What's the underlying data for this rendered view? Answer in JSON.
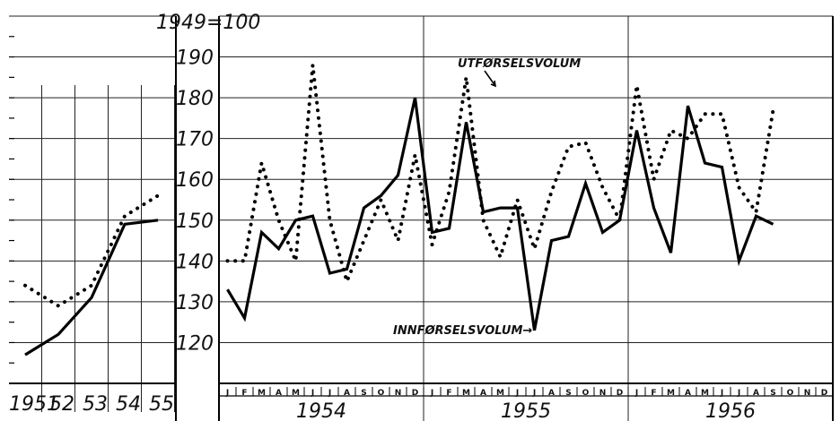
{
  "chart_data": [
    {
      "type": "line",
      "ylim": [
        110,
        200
      ],
      "x": [
        "1951",
        "52",
        "53",
        "54",
        "55"
      ],
      "series": [
        {
          "values": [
            117,
            122,
            131,
            149,
            150
          ]
        },
        {
          "values": [
            134,
            129,
            134,
            151,
            156
          ]
        }
      ]
    },
    {
      "type": "line",
      "ylabel": "1949=100",
      "ylim": [
        110,
        200
      ],
      "yticks": [
        120,
        130,
        140,
        150,
        160,
        170,
        180,
        190
      ],
      "years": [
        "1954",
        "1955",
        "1956"
      ],
      "months": [
        "J",
        "F",
        "M",
        "A",
        "M",
        "J",
        "J",
        "A",
        "S",
        "O",
        "N",
        "D"
      ],
      "series": [
        {
          "name": "INNFØRSELSVOLUM",
          "values": [
            133,
            126,
            147,
            143,
            150,
            151,
            137,
            138,
            153,
            156,
            161,
            180,
            147,
            148,
            174,
            152,
            153,
            153,
            123,
            145,
            146,
            159,
            147,
            150,
            172,
            153,
            142,
            178,
            164,
            163,
            140,
            151,
            149
          ]
        },
        {
          "name": "UTFØRSELSVOLUM",
          "values": [
            140,
            140,
            164,
            150,
            140,
            188,
            150,
            135,
            145,
            155,
            145,
            166,
            144,
            157,
            185,
            150,
            141,
            155,
            143,
            157,
            168,
            169,
            158,
            150,
            183,
            160,
            172,
            170,
            176,
            176,
            158,
            152,
            177
          ]
        }
      ],
      "annotations": [
        "UTFØRSELSVOLUM",
        "INNFØRSELSVOLUM→"
      ]
    }
  ]
}
